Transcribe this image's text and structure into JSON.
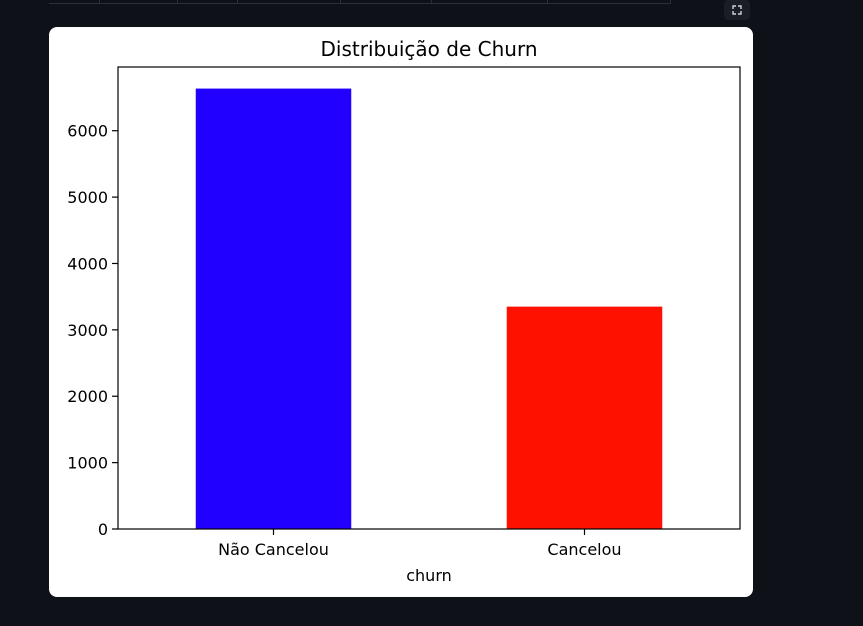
{
  "toolbar": {
    "fullscreen_icon": "expand-icon"
  },
  "chart_data": {
    "type": "bar",
    "title": "Distribuição de Churn",
    "xlabel": "churn",
    "ylabel": "",
    "categories": [
      "Não Cancelou",
      "Cancelou"
    ],
    "values": [
      6635,
      3350
    ],
    "colors": [
      "#2200ff",
      "#ff1100"
    ],
    "ylim": [
      0,
      6960
    ],
    "yticks": [
      0,
      1000,
      2000,
      3000,
      4000,
      5000,
      6000
    ],
    "grid": false,
    "legend": "none"
  }
}
